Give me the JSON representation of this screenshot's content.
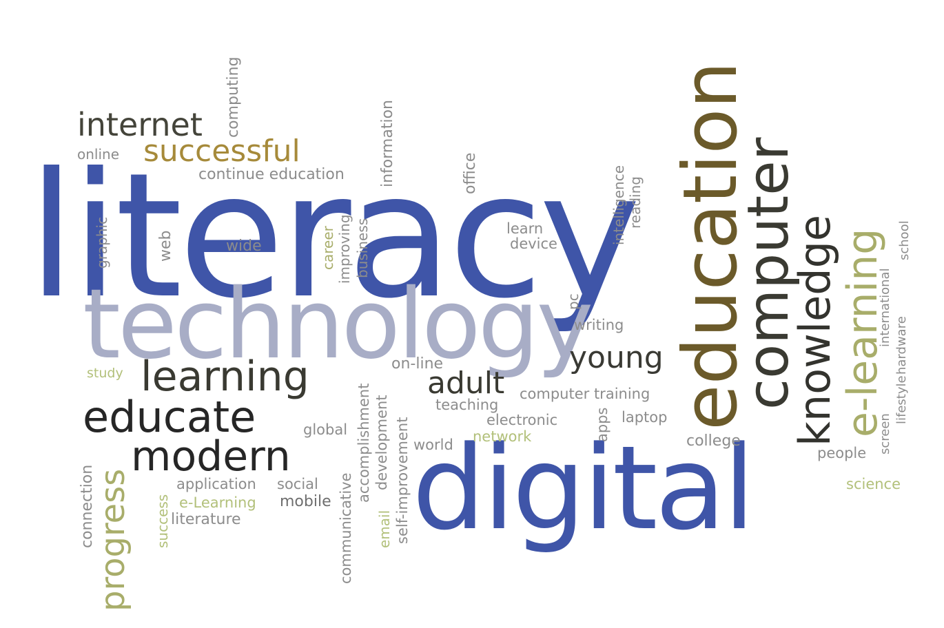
{
  "colors": {
    "blue": "#3f55a8",
    "olive": "#7a6a2a",
    "brown": "#6b5a2a",
    "dark": "#2e2e2e",
    "dark2": "#44443a",
    "gray": "#8c8c8c",
    "light_gray": "#a8adc6",
    "light_olive": "#a8ad6a",
    "green": "#b2c07a"
  },
  "words": {
    "literacy": "literacy",
    "technology": "technology",
    "digital": "digital",
    "education": "education",
    "computer": "computer",
    "knowledge": "knowledge",
    "e_learning_big": "e-learning",
    "internet": "internet",
    "successful": "successful",
    "continue_education": "continue education",
    "online": "online",
    "computing": "computing",
    "information": "information",
    "office": "office",
    "intelligence": "intelligence",
    "reading": "reading",
    "learn": "learn",
    "device": "device",
    "wide": "wide",
    "web": "web",
    "graphic": "graphic",
    "career": "career",
    "improving": "improving",
    "business": "business",
    "pc": "pc",
    "writing": "writing",
    "young": "young",
    "learning": "learning",
    "study": "study",
    "on_line": "on-line",
    "adult": "adult",
    "educate": "educate",
    "teaching": "teaching",
    "computer_training": "computer training",
    "electronic": "electronic",
    "laptop": "laptop",
    "global": "global",
    "network": "network",
    "world": "world",
    "apps": "apps",
    "college": "college",
    "modern": "modern",
    "progress": "progress",
    "connection": "connection",
    "success": "success",
    "application": "application",
    "social": "social",
    "e_learning_small": "e-Learning",
    "mobile": "mobile",
    "literature": "literature",
    "communicative": "communicative",
    "accomplishment": "accomplishment",
    "development": "development",
    "email": "email",
    "self_improvement": "self-improvement",
    "international": "international",
    "lifestyle": "lifestyle",
    "hardware": "hardware",
    "school": "school",
    "screen": "screen",
    "people": "people",
    "science": "science"
  }
}
